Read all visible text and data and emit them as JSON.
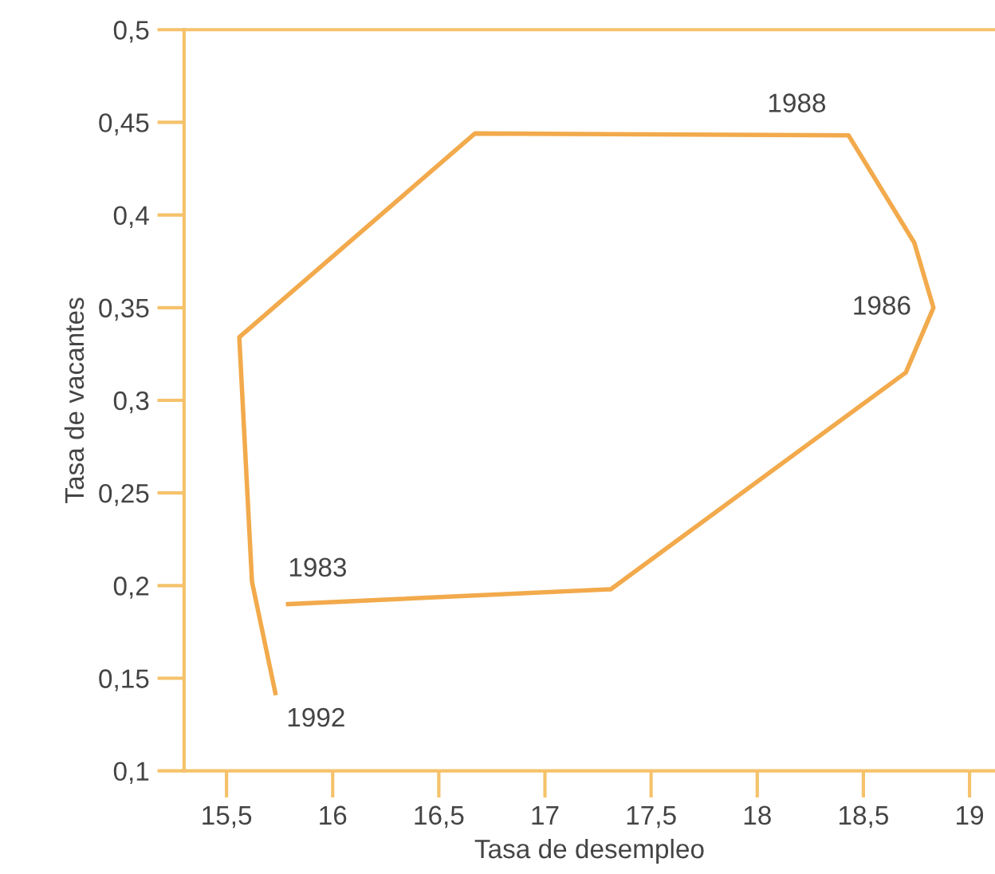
{
  "chart_data": {
    "type": "line",
    "xlabel": "Tasa de desempleo",
    "ylabel": "Tasa de vacantes",
    "x": [
      15.79,
      17.31,
      18.7,
      18.83,
      18.74,
      18.43,
      16.67,
      15.56,
      15.62,
      15.73
    ],
    "series": [
      {
        "color": "#f2aa4c",
        "values": [
          0.19,
          0.198,
          0.315,
          0.35,
          0.385,
          0.443,
          0.444,
          0.334,
          0.202,
          0.142
        ]
      }
    ],
    "xlim": [
      15.3,
      19.12
    ],
    "ylim": [
      0.1,
      0.5
    ],
    "xticks": [
      {
        "value": 15.5,
        "label": "15,5"
      },
      {
        "value": 16,
        "label": "16"
      },
      {
        "value": 16.5,
        "label": "16,5"
      },
      {
        "value": 17,
        "label": "17"
      },
      {
        "value": 17.5,
        "label": "17,5"
      },
      {
        "value": 18,
        "label": "18"
      },
      {
        "value": 18.5,
        "label": "18,5"
      },
      {
        "value": 19,
        "label": "19"
      }
    ],
    "yticks": [
      {
        "value": 0.1,
        "label": "0,1"
      },
      {
        "value": 0.15,
        "label": "0,15"
      },
      {
        "value": 0.2,
        "label": "0,2"
      },
      {
        "value": 0.25,
        "label": "0,25"
      },
      {
        "value": 0.3,
        "label": "0,3"
      },
      {
        "value": 0.35,
        "label": "0,35"
      },
      {
        "value": 0.4,
        "label": "0,4"
      },
      {
        "value": 0.45,
        "label": "0,45"
      },
      {
        "value": 0.5,
        "label": "0,5"
      }
    ],
    "annotations": [
      {
        "text": "1983",
        "x": 15.79,
        "y": 0.19
      },
      {
        "text": "1986",
        "x": 18.83,
        "y": 0.35
      },
      {
        "text": "1988",
        "x": 18.43,
        "y": 0.443
      },
      {
        "text": "1992",
        "x": 15.73,
        "y": 0.142
      }
    ],
    "grid": false,
    "legend": false,
    "marker": "none",
    "line_style": "solid"
  }
}
